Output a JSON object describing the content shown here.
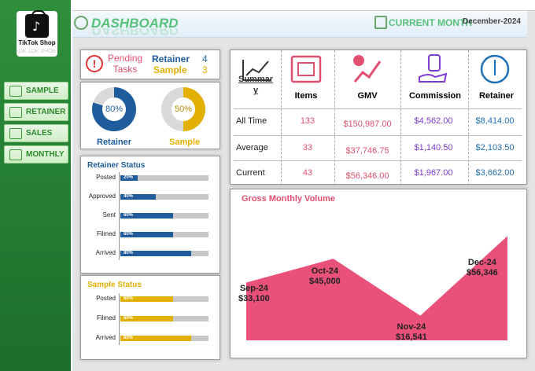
{
  "brand": {
    "name": "TikTok Shop",
    "reflection": "TIK TOK SHOP"
  },
  "nav": [
    {
      "label": "SAMPLE",
      "icon": "edit-icon"
    },
    {
      "label": "RETAINER",
      "icon": "check-icon"
    },
    {
      "label": "SALES",
      "icon": "money-icon"
    },
    {
      "label": "MONTHLY",
      "icon": "calendar-icon"
    }
  ],
  "header": {
    "title": "DASHBOARD",
    "current_month_label": "CURRENT MONTH",
    "current_month_value": "December-2024"
  },
  "pending": {
    "label": "Pending Tasks",
    "items": [
      {
        "name": "Retainer",
        "value": "4"
      },
      {
        "name": "Sample",
        "value": "3"
      }
    ]
  },
  "rings": [
    {
      "label": "Retainer",
      "percent": "80%",
      "value": 0.8,
      "color": "#1e5c9b"
    },
    {
      "label": "Sample",
      "percent": "50%",
      "value": 0.5,
      "color": "#e2b000"
    }
  ],
  "retainer_status": {
    "title": "Retainer Status",
    "rows": [
      {
        "label": "Posted",
        "text": "20%",
        "value": 0.2
      },
      {
        "label": "Approved",
        "text": "40%",
        "value": 0.4
      },
      {
        "label": "Sent",
        "text": "60%",
        "value": 0.6
      },
      {
        "label": "Filmed",
        "text": "60%",
        "value": 0.6
      },
      {
        "label": "Arrived",
        "text": "80%",
        "value": 0.8
      }
    ]
  },
  "sample_status": {
    "title": "Sample Status",
    "rows": [
      {
        "label": "Posted",
        "text": "60%",
        "value": 0.6
      },
      {
        "label": "Filmed",
        "text": "60%",
        "value": 0.6
      },
      {
        "label": "Arrived",
        "text": "80%",
        "value": 0.8
      }
    ]
  },
  "summary": {
    "title": "Summar y",
    "columns": [
      {
        "header": "Items",
        "color": "#e0506f",
        "icon": "film-icon"
      },
      {
        "header": "GMV",
        "color": "#e0506f",
        "icon": "growth-chart-icon"
      },
      {
        "header": "Commission",
        "color": "#7c3ad1",
        "icon": "euro-hand-icon"
      },
      {
        "header": "Retainer",
        "color": "#1e6fb4",
        "icon": "clock-icon"
      }
    ],
    "rows": [
      {
        "label": "All Time",
        "values": [
          "133",
          "$150,987.00",
          "$4,562.00",
          "$8,414.00"
        ]
      },
      {
        "label": "Average",
        "values": [
          "33",
          "$37,746.75",
          "$1,140.50",
          "$2,103.50"
        ]
      },
      {
        "label": "Current",
        "values": [
          "43",
          "$56,346.00",
          "$1,967.00",
          "$3,662.00"
        ]
      }
    ]
  },
  "chart_data": {
    "type": "area",
    "title": "Gross Monthly Volume",
    "categories": [
      "Sep-24",
      "Oct-24",
      "Nov-24",
      "Dec-24"
    ],
    "values": [
      33100,
      45000,
      16541,
      56346
    ],
    "value_labels": [
      "$33,100",
      "$45,000",
      "$16,541",
      "$56,346"
    ],
    "color": "#e9507a",
    "ylim": [
      0,
      70000
    ],
    "grid": false
  }
}
